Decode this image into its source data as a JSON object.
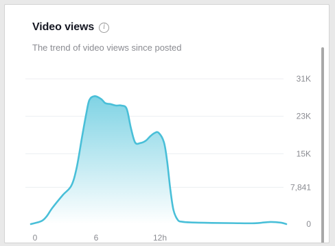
{
  "header": {
    "title": "Video views",
    "info_icon": "info-icon",
    "subtitle": "The trend of video views since posted"
  },
  "colors": {
    "line": "#49bfd8",
    "fill_top": "#7fd3e4",
    "fill_bottom": "#ffffff"
  },
  "chart_data": {
    "type": "area",
    "title": "Video views",
    "subtitle": "The trend of video views since posted",
    "xlabel": "",
    "ylabel": "",
    "ytick_labels": [
      "31K",
      "23K",
      "15K",
      "7,841",
      "0"
    ],
    "ytick_values": [
      31000,
      23000,
      15000,
      7841,
      0
    ],
    "xtick_labels": [
      "0",
      "6",
      "12h"
    ],
    "xtick_values": [
      0,
      6,
      12
    ],
    "xlim": [
      0,
      24
    ],
    "ylim": [
      0,
      31000
    ],
    "grid": true,
    "series": [
      {
        "x": [
          0,
          1,
          1.5,
          2,
          3,
          3.8,
          4.3,
          4.8,
          5.2,
          5.5,
          6,
          6.6,
          7,
          7.5,
          8,
          8.5,
          9,
          9.4,
          9.8,
          10.3,
          10.8,
          11.2,
          11.6,
          12,
          12.5,
          12.8,
          13.1,
          13.4,
          13.8,
          14.2,
          15,
          17,
          19,
          21,
          22.5,
          23.5,
          24
        ],
        "y": [
          0,
          650,
          1700,
          3400,
          6200,
          8200,
          12000,
          18500,
          23500,
          26500,
          27300,
          26700,
          25800,
          25600,
          25300,
          25300,
          24600,
          20500,
          17400,
          17300,
          17800,
          18700,
          19400,
          19500,
          17500,
          13500,
          7500,
          3000,
          900,
          500,
          350,
          250,
          200,
          180,
          450,
          300,
          0
        ]
      }
    ]
  }
}
